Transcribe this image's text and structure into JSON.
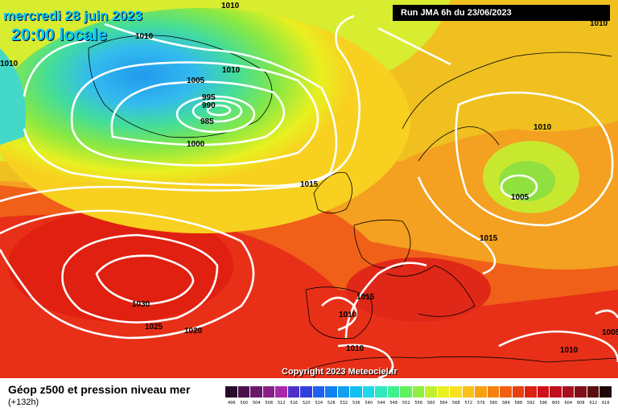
{
  "header": {
    "date_text": "mercredi 28 juin 2023",
    "time_text": "20:00 locale",
    "run_text": "Run JMA 6h du 23/06/2023"
  },
  "map": {
    "copyright": "Copyright 2023 Meteociel.fr",
    "isobar_labels": [
      "1010",
      "1010",
      "1010",
      "1005",
      "995",
      "990",
      "985",
      "1000",
      "1015",
      "1010",
      "1005",
      "1015",
      "1030",
      "1025",
      "1020",
      "1015",
      "1010",
      "1010",
      "1010",
      "1005",
      "1010",
      "1010"
    ],
    "colors": {
      "low_core": "#33bbee",
      "high_core": "#ee2211",
      "isobar": "#ffffff",
      "coastline": "#000000"
    }
  },
  "legend": {
    "title": "Géop z500 et pression niveau mer",
    "subtitle": "(+132h)",
    "scale_values": [
      "496",
      "500",
      "504",
      "508",
      "512",
      "516",
      "520",
      "524",
      "528",
      "532",
      "536",
      "540",
      "544",
      "548",
      "552",
      "556",
      "560",
      "564",
      "568",
      "572",
      "576",
      "580",
      "584",
      "588",
      "592",
      "596",
      "600",
      "604",
      "608",
      "612",
      "616"
    ],
    "scale_colors": [
      "#2a0a2a",
      "#4a104a",
      "#6a186a",
      "#8a208a",
      "#a828a8",
      "#5030c8",
      "#3040e0",
      "#2060f0",
      "#1080f0",
      "#10a0f0",
      "#10c0f0",
      "#20d8e8",
      "#30e8c0",
      "#40f090",
      "#60f060",
      "#90f040",
      "#c0f030",
      "#e8f020",
      "#f8e020",
      "#f8c018",
      "#f8a010",
      "#f88010",
      "#f06010",
      "#e84010",
      "#e02010",
      "#d01018",
      "#c01020",
      "#a81020",
      "#801018",
      "#581010",
      "#200808"
    ]
  }
}
